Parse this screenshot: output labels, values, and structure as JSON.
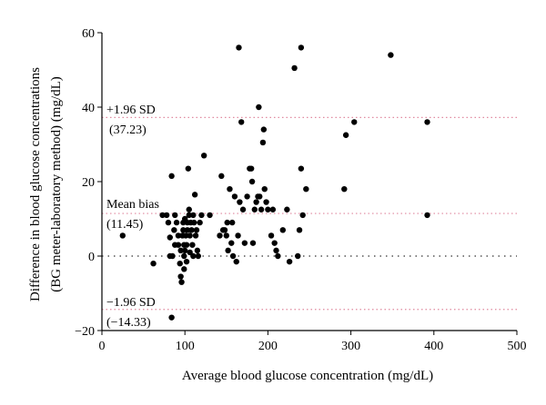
{
  "chart_data": {
    "type": "scatter",
    "title": "",
    "xlabel": "Average blood glucose concentration (mg/dL)",
    "ylabel_line1": "Difference in blood glucose concentrations",
    "ylabel_line2": "(BG meter-laboratory method) (mg/dL)",
    "xlim": [
      0,
      500
    ],
    "ylim": [
      -20,
      60
    ],
    "xticks": [
      0,
      100,
      200,
      300,
      400,
      500
    ],
    "xtick_labels": [
      "0",
      "100",
      "200",
      "300",
      "400",
      "500"
    ],
    "yticks": [
      -20,
      0,
      20,
      40,
      60
    ],
    "ytick_labels": [
      "−20",
      "0",
      "20",
      "40",
      "60"
    ],
    "grid": false,
    "reference_lines": [
      {
        "name": "upper",
        "y": 37.23,
        "color": "#e0899f",
        "style": "dotted",
        "label1": "+1.96 SD",
        "label2": "(37.23)"
      },
      {
        "name": "mean",
        "y": 11.45,
        "color": "#e0899f",
        "style": "dotted",
        "label1": "Mean bias",
        "label2": "(11.45)"
      },
      {
        "name": "zero",
        "y": 0,
        "color": "#333333",
        "style": "dotted",
        "label1": "",
        "label2": ""
      },
      {
        "name": "lower",
        "y": -14.33,
        "color": "#e0899f",
        "style": "dotted",
        "label1": "−1.96 SD",
        "label2": "(−14.33)"
      }
    ],
    "points": [
      [
        25,
        5.5
      ],
      [
        62,
        -2
      ],
      [
        73,
        11
      ],
      [
        78,
        11
      ],
      [
        80,
        9
      ],
      [
        82,
        5
      ],
      [
        82,
        0
      ],
      [
        84,
        21.5
      ],
      [
        85,
        0
      ],
      [
        84,
        -16.5
      ],
      [
        87,
        7
      ],
      [
        88,
        3
      ],
      [
        88,
        11
      ],
      [
        90,
        9
      ],
      [
        92,
        3
      ],
      [
        92,
        5.5
      ],
      [
        94,
        -2
      ],
      [
        95,
        1.5
      ],
      [
        95,
        -5.5
      ],
      [
        96,
        -7
      ],
      [
        97,
        5.5
      ],
      [
        98,
        9
      ],
      [
        98,
        7
      ],
      [
        99,
        3
      ],
      [
        99,
        -3.5
      ],
      [
        99,
        0
      ],
      [
        100,
        10
      ],
      [
        100,
        1.5
      ],
      [
        101,
        5.5
      ],
      [
        102,
        3
      ],
      [
        102,
        -1.5
      ],
      [
        103,
        7
      ],
      [
        103,
        9
      ],
      [
        104,
        23.5
      ],
      [
        105,
        12.5
      ],
      [
        105,
        11
      ],
      [
        106,
        5.5
      ],
      [
        106,
        1
      ],
      [
        107,
        9
      ],
      [
        108,
        7
      ],
      [
        109,
        3
      ],
      [
        110,
        11
      ],
      [
        110,
        0
      ],
      [
        111,
        9
      ],
      [
        112,
        16.5
      ],
      [
        113,
        5.5
      ],
      [
        114,
        7
      ],
      [
        115,
        1.5
      ],
      [
        116,
        0
      ],
      [
        118,
        9
      ],
      [
        120,
        11
      ],
      [
        123,
        27
      ],
      [
        130,
        11
      ],
      [
        142,
        5.5
      ],
      [
        144,
        21.5
      ],
      [
        146,
        7
      ],
      [
        148,
        7
      ],
      [
        150,
        5.5
      ],
      [
        151,
        9
      ],
      [
        152,
        1.5
      ],
      [
        154,
        18
      ],
      [
        156,
        3.5
      ],
      [
        157,
        9
      ],
      [
        158,
        0
      ],
      [
        160,
        16
      ],
      [
        162,
        -1.5
      ],
      [
        164,
        5.5
      ],
      [
        165,
        56
      ],
      [
        166,
        14.5
      ],
      [
        168,
        36
      ],
      [
        170,
        12.5
      ],
      [
        172,
        3.5
      ],
      [
        175,
        16
      ],
      [
        178,
        23.5
      ],
      [
        180,
        23.5
      ],
      [
        181,
        20
      ],
      [
        182,
        3.5
      ],
      [
        184,
        12.5
      ],
      [
        186,
        14.5
      ],
      [
        188,
        16
      ],
      [
        189,
        40
      ],
      [
        190,
        16
      ],
      [
        192,
        12.5
      ],
      [
        194,
        30.5
      ],
      [
        195,
        34
      ],
      [
        196,
        18
      ],
      [
        198,
        14.5
      ],
      [
        200,
        12.5
      ],
      [
        204,
        5.5
      ],
      [
        206,
        12.5
      ],
      [
        208,
        3.5
      ],
      [
        210,
        1.5
      ],
      [
        212,
        0
      ],
      [
        218,
        7
      ],
      [
        223,
        12.5
      ],
      [
        226,
        -1.5
      ],
      [
        232,
        50.5
      ],
      [
        236,
        0
      ],
      [
        238,
        7
      ],
      [
        240,
        23.5
      ],
      [
        240,
        56
      ],
      [
        242,
        11
      ],
      [
        246,
        18
      ],
      [
        292,
        18
      ],
      [
        294,
        32.5
      ],
      [
        304,
        36
      ],
      [
        348,
        54
      ],
      [
        392,
        36
      ],
      [
        392,
        11
      ]
    ]
  }
}
